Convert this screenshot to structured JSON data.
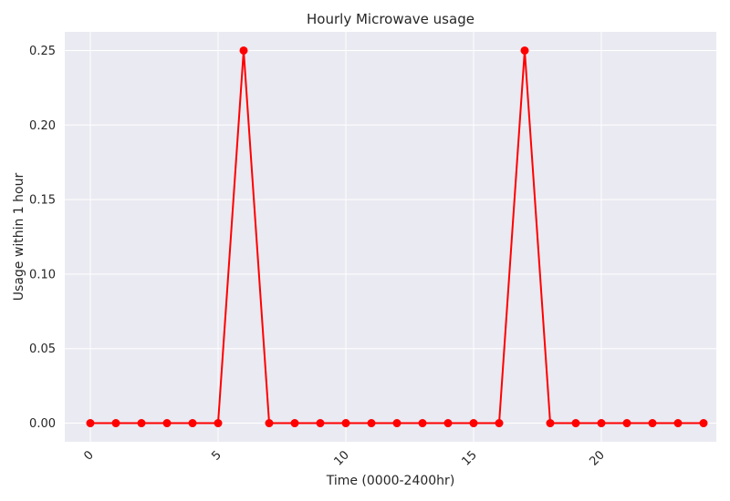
{
  "chart_data": {
    "type": "line",
    "title": "Hourly Microwave usage",
    "xlabel": "Time (0000-2400hr)",
    "ylabel": "Usage within 1 hour",
    "xlim": [
      -1,
      24.5
    ],
    "ylim": [
      -0.0125,
      0.2625
    ],
    "x_ticks": [
      0,
      5,
      10,
      15,
      20
    ],
    "x_tick_labels": [
      "0",
      "5",
      "10",
      "15",
      "20"
    ],
    "y_ticks": [
      0.0,
      0.05,
      0.1,
      0.15,
      0.2,
      0.25
    ],
    "y_tick_labels": [
      "0.00",
      "0.05",
      "0.10",
      "0.15",
      "0.20",
      "0.25"
    ],
    "grid": true,
    "series": [
      {
        "color": "#ff0000",
        "marker": "circle",
        "x": [
          0,
          1,
          2,
          3,
          4,
          5,
          6,
          7,
          8,
          9,
          10,
          11,
          12,
          13,
          14,
          15,
          16,
          17,
          18,
          19,
          20,
          21,
          22,
          23,
          24
        ],
        "values": [
          0,
          0,
          0,
          0,
          0,
          0,
          0.25,
          0,
          0,
          0,
          0,
          0,
          0,
          0,
          0,
          0,
          0,
          0.25,
          0,
          0,
          0,
          0,
          0,
          0,
          0
        ]
      }
    ]
  }
}
